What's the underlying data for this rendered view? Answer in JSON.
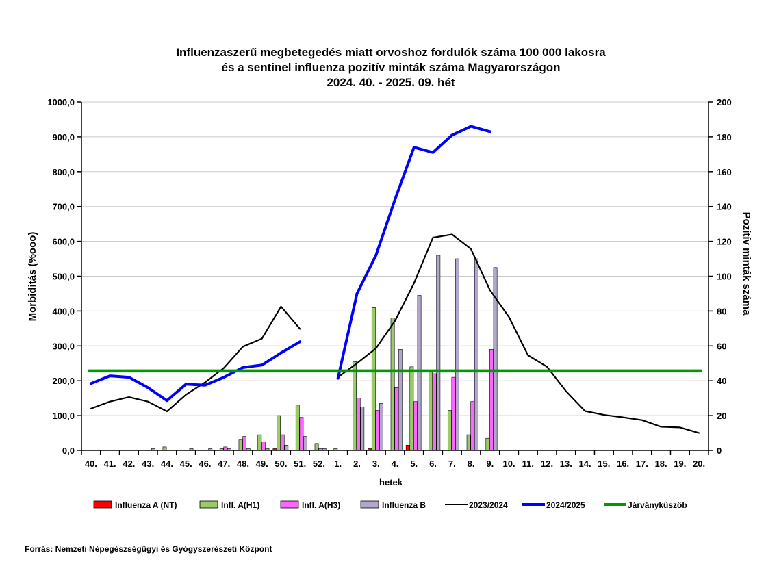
{
  "chart_data": {
    "type": "bar",
    "title": [
      "Influenzaszerű megbetegedés miatt orvoshoz fordulók száma 100 000 lakosra",
      "és a sentinel influenza pozitív minták száma Magyarországon",
      "2024. 40. - 2025. 09. hét"
    ],
    "xlabel": "hetek",
    "ylabel": "Morbiditás (%ooo)",
    "y2label": "Pozitív minták száma",
    "ylim": [
      0,
      1000
    ],
    "y2lim": [
      0,
      200
    ],
    "yticks": [
      "0,0",
      "100,0",
      "200,0",
      "300,0",
      "400,0",
      "500,0",
      "600,0",
      "700,0",
      "800,0",
      "900,0",
      "1000,0"
    ],
    "y2ticks": [
      "0",
      "20",
      "40",
      "60",
      "80",
      "100",
      "120",
      "140",
      "160",
      "180",
      "200"
    ],
    "grid": true,
    "legend_position": "bottom",
    "categories": [
      "40.",
      "41.",
      "42.",
      "43.",
      "44.",
      "45.",
      "46.",
      "47.",
      "48.",
      "49.",
      "50.",
      "51.",
      "52.",
      "1.",
      "2.",
      "3.",
      "4.",
      "5.",
      "6.",
      "7.",
      "8.",
      "9.",
      "10.",
      "11.",
      "12.",
      "13.",
      "14.",
      "15.",
      "16.",
      "17.",
      "18.",
      "19.",
      "20."
    ],
    "bar_series": [
      {
        "name": "Influenza A (NT)",
        "color": "#ff0000",
        "values": [
          0,
          0,
          0,
          0,
          0,
          0,
          0,
          0,
          0,
          0,
          1,
          0,
          0,
          0,
          0,
          1,
          0,
          3,
          0,
          0,
          0,
          0,
          null,
          null,
          null,
          null,
          null,
          null,
          null,
          null,
          null,
          null,
          null
        ]
      },
      {
        "name": "Infl. A(H1)",
        "color": "#99cc66",
        "values": [
          0,
          0,
          0,
          0,
          2,
          0,
          0,
          1,
          6,
          9,
          20,
          26,
          4,
          1,
          51,
          82,
          76,
          48,
          45,
          23,
          9,
          7,
          null,
          null,
          null,
          null,
          null,
          null,
          null,
          null,
          null,
          null,
          null
        ]
      },
      {
        "name": "Infl. A(H3)",
        "color": "#ff66ff",
        "values": [
          0,
          0,
          0,
          0,
          0,
          0,
          0,
          2,
          8,
          5,
          9,
          19,
          1,
          0,
          30,
          23,
          36,
          28,
          44,
          42,
          28,
          58,
          null,
          null,
          null,
          null,
          null,
          null,
          null,
          null,
          null,
          null,
          null
        ]
      },
      {
        "name": "Influenza B",
        "color": "#b3a6cc",
        "values": [
          0,
          0,
          0,
          1,
          0,
          1,
          1,
          1,
          1,
          1,
          3,
          8,
          1,
          0,
          25,
          27,
          58,
          89,
          112,
          110,
          110,
          105,
          null,
          null,
          null,
          null,
          null,
          null,
          null,
          null,
          null,
          null,
          null
        ]
      }
    ],
    "line_series": [
      {
        "name": "2023/2024",
        "color": "#000000",
        "values": [
          120,
          140,
          153,
          140,
          112,
          160,
          195,
          237,
          298,
          321,
          413,
          349,
          null,
          210,
          250,
          293,
          372,
          480,
          611,
          620,
          578,
          460,
          383,
          273,
          240,
          170,
          113,
          102,
          95,
          87,
          68,
          66,
          50
        ]
      },
      {
        "name": "2024/2025",
        "color": "#0000ff",
        "values": [
          192,
          214,
          210,
          180,
          143,
          190,
          187,
          210,
          238,
          245,
          280,
          312,
          null,
          207,
          450,
          560,
          720,
          870,
          855,
          905,
          930,
          915,
          null,
          null,
          null,
          null,
          null,
          null,
          null,
          null,
          null,
          null,
          null
        ]
      },
      {
        "name": "Járványküszöb",
        "color": "#009900",
        "values": [
          228,
          228,
          228,
          228,
          228,
          228,
          228,
          228,
          228,
          228,
          228,
          228,
          228,
          228,
          228,
          228,
          228,
          228,
          228,
          228,
          228,
          228,
          228,
          228,
          228,
          228,
          228,
          228,
          228,
          228,
          228,
          228,
          228
        ]
      }
    ]
  },
  "source_text": "Forrás: Nemzeti Népegészségügyi és Gyógyszerészeti Központ"
}
